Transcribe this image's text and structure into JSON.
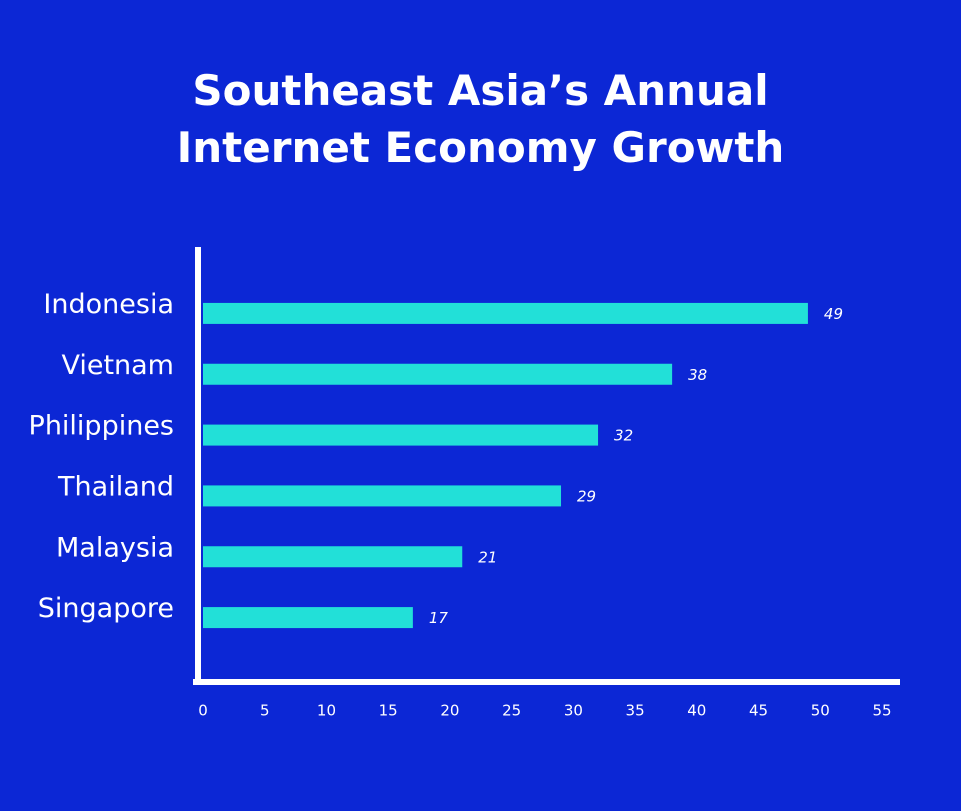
{
  "chart_data": {
    "type": "bar",
    "orientation": "horizontal",
    "title": "Southeast Asia’s Annual Internet Economy Growth",
    "categories": [
      "Indonesia",
      "Vietnam",
      "Philippines",
      "Thailand",
      "Malaysia",
      "Singapore"
    ],
    "values": [
      49,
      38,
      32,
      29,
      21,
      17
    ],
    "color": "#22e0d8",
    "xlim": [
      0,
      55
    ],
    "xticks": [
      0,
      5,
      10,
      15,
      20,
      25,
      30,
      35,
      40,
      45,
      50,
      55
    ],
    "grid": false
  }
}
